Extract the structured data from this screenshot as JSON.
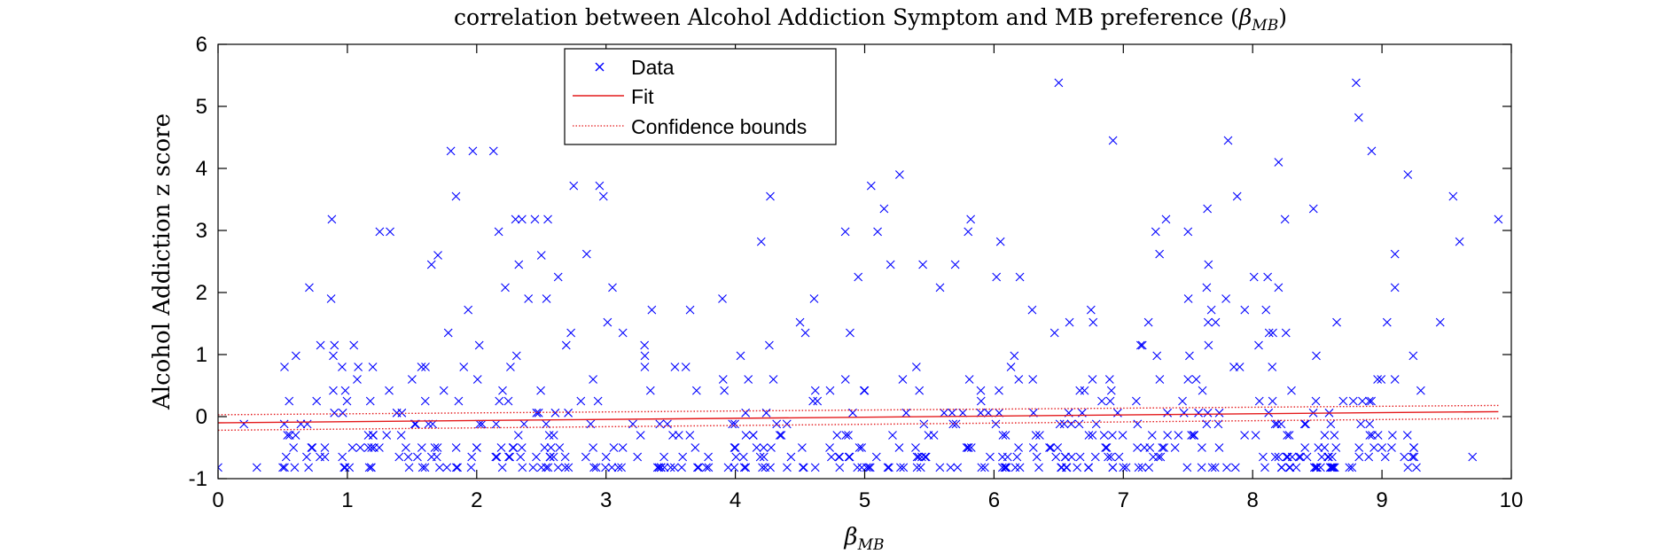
{
  "chart_data": {
    "type": "scatter",
    "title_main": "correlation between Alcohol Addiction Symptom and MB preference (",
    "title_symbol": "β",
    "title_sub": "MB",
    "title_close": ")",
    "xlabel_symbol": "β",
    "xlabel_sub": "MB",
    "ylabel": "Alcohol Addiction z score",
    "xlim": [
      0,
      10
    ],
    "ylim": [
      -1,
      6
    ],
    "xticks": [
      0,
      1,
      2,
      3,
      4,
      5,
      6,
      7,
      8,
      9,
      10
    ],
    "yticks": [
      -1,
      0,
      1,
      2,
      3,
      4,
      5,
      6
    ],
    "grid": false,
    "legend_position": "top-center",
    "legend": [
      {
        "name": "Data",
        "marker": "x",
        "color": "#0000ff"
      },
      {
        "name": "Fit",
        "style": "solid",
        "color": "#e41a1c"
      },
      {
        "name": "Confidence bounds",
        "style": "dotted",
        "color": "#e41a1c"
      }
    ],
    "fit": {
      "x": [
        0,
        9.9
      ],
      "y": [
        -0.1,
        0.08
      ]
    },
    "bounds_upper": {
      "x": [
        0,
        9.9
      ],
      "y": [
        0.03,
        0.18
      ]
    },
    "bounds_lower": {
      "x": [
        0,
        9.9
      ],
      "y": [
        -0.22,
        -0.03
      ]
    },
    "data_points": [
      [
        0.0,
        -0.82
      ],
      [
        0.3,
        -0.82
      ],
      [
        0.55,
        0.25
      ],
      [
        0.88,
        3.18
      ],
      [
        1.25,
        2.98
      ],
      [
        1.33,
        2.98
      ],
      [
        1.65,
        2.45
      ],
      [
        1.7,
        2.6
      ],
      [
        1.8,
        4.28
      ],
      [
        1.84,
        3.55
      ],
      [
        1.97,
        4.28
      ],
      [
        2.13,
        4.28
      ],
      [
        2.17,
        2.98
      ],
      [
        2.3,
        3.18
      ],
      [
        2.35,
        3.18
      ],
      [
        2.45,
        3.18
      ],
      [
        2.5,
        2.6
      ],
      [
        2.55,
        3.18
      ],
      [
        2.75,
        3.72
      ],
      [
        2.85,
        2.62
      ],
      [
        2.95,
        3.72
      ],
      [
        2.98,
        3.55
      ],
      [
        3.05,
        2.08
      ],
      [
        4.2,
        2.82
      ],
      [
        4.27,
        3.55
      ],
      [
        4.85,
        2.98
      ],
      [
        5.05,
        3.72
      ],
      [
        5.1,
        2.98
      ],
      [
        5.15,
        3.35
      ],
      [
        5.2,
        2.45
      ],
      [
        5.27,
        3.9
      ],
      [
        5.8,
        2.98
      ],
      [
        5.82,
        3.18
      ],
      [
        6.05,
        2.82
      ],
      [
        6.5,
        5.38
      ],
      [
        6.92,
        4.45
      ],
      [
        7.25,
        2.98
      ],
      [
        7.28,
        2.62
      ],
      [
        7.33,
        3.18
      ],
      [
        7.65,
        3.35
      ],
      [
        7.81,
        4.45
      ],
      [
        7.88,
        3.55
      ],
      [
        8.2,
        4.1
      ],
      [
        8.25,
        3.18
      ],
      [
        8.47,
        3.35
      ],
      [
        8.8,
        5.38
      ],
      [
        8.82,
        4.82
      ],
      [
        8.92,
        4.28
      ],
      [
        9.1,
        2.62
      ],
      [
        9.2,
        3.9
      ],
      [
        9.55,
        3.55
      ],
      [
        9.6,
        2.82
      ],
      [
        9.9,
        3.18
      ],
      [
        9.45,
        1.52
      ],
      [
        8.2,
        2.08
      ],
      [
        7.5,
        2.98
      ],
      [
        6.2,
        2.25
      ],
      [
        5.7,
        2.45
      ],
      [
        4.95,
        2.25
      ],
      [
        3.9,
        1.9
      ],
      [
        2.63,
        2.25
      ],
      [
        1.05,
        1.15
      ],
      [
        0.9,
        1.15
      ],
      [
        1.78,
        1.35
      ],
      [
        3.65,
        1.72
      ],
      [
        4.5,
        1.52
      ],
      [
        6.75,
        1.72
      ],
      [
        8.65,
        1.52
      ],
      [
        2.4,
        1.9
      ],
      [
        9.1,
        2.08
      ],
      [
        1.5,
        0.6
      ],
      [
        1.9,
        0.8
      ],
      [
        2.2,
        0.42
      ],
      [
        2.9,
        0.6
      ],
      [
        3.3,
        0.8
      ],
      [
        3.7,
        0.42
      ],
      [
        4.1,
        0.6
      ],
      [
        4.6,
        0.25
      ],
      [
        5.0,
        0.42
      ],
      [
        5.4,
        0.8
      ],
      [
        5.9,
        0.25
      ],
      [
        6.3,
        0.6
      ],
      [
        6.7,
        0.42
      ],
      [
        7.1,
        0.25
      ],
      [
        7.5,
        0.6
      ],
      [
        7.9,
        0.8
      ],
      [
        8.3,
        0.42
      ],
      [
        8.7,
        0.25
      ],
      [
        9.1,
        0.6
      ],
      [
        9.3,
        0.42
      ],
      [
        0.2,
        -0.12
      ],
      [
        0.6,
        -0.3
      ],
      [
        0.7,
        -0.82
      ],
      [
        1.1,
        -0.5
      ],
      [
        1.2,
        -0.3
      ],
      [
        1.4,
        -0.65
      ],
      [
        1.6,
        -0.82
      ],
      [
        2.0,
        -0.5
      ],
      [
        2.5,
        -0.82
      ],
      [
        3.0,
        -0.65
      ],
      [
        3.5,
        -0.82
      ],
      [
        4.0,
        -0.5
      ],
      [
        4.4,
        -0.82
      ],
      [
        4.8,
        -0.65
      ],
      [
        5.3,
        -0.82
      ],
      [
        5.8,
        -0.5
      ],
      [
        6.2,
        -0.82
      ],
      [
        6.6,
        -0.65
      ],
      [
        7.0,
        -0.82
      ],
      [
        7.4,
        -0.5
      ],
      [
        7.8,
        -0.82
      ],
      [
        8.2,
        -0.65
      ],
      [
        8.6,
        -0.82
      ],
      [
        9.0,
        -0.5
      ],
      [
        9.2,
        -0.82
      ],
      [
        9.7,
        -0.65
      ]
    ],
    "scatter_band": {
      "x_range": [
        0.5,
        9.3
      ],
      "y_levels": [
        -0.82,
        -0.65,
        -0.5,
        -0.3,
        -0.12,
        0.06,
        0.25,
        0.42,
        0.6,
        0.8,
        0.98,
        1.15,
        1.35,
        1.52,
        1.72,
        1.9,
        2.08,
        2.25,
        2.45
      ],
      "level_counts": [
        110,
        75,
        62,
        50,
        40,
        30,
        20,
        16,
        14,
        12,
        10,
        9,
        8,
        7,
        6,
        5,
        4,
        3,
        3
      ]
    },
    "colors": {
      "data": "#0000ff",
      "fit": "#e41a1c",
      "axes": "#000000"
    }
  }
}
